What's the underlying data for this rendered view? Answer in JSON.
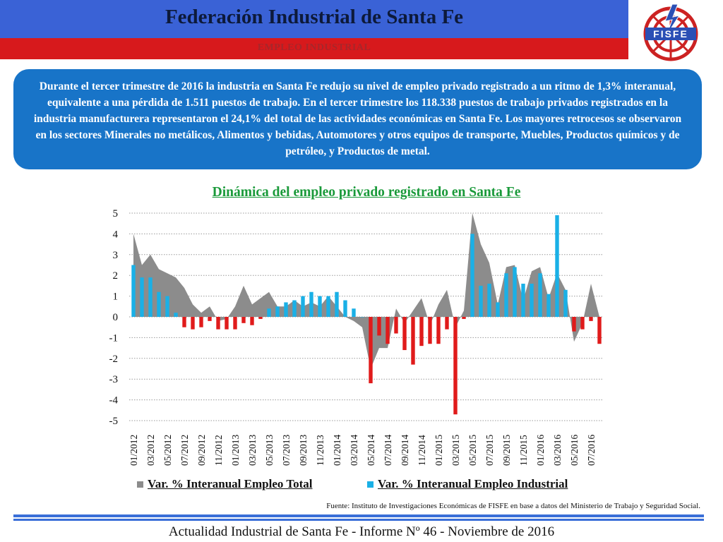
{
  "header": {
    "title": "Federación Industrial de Santa Fe",
    "subtitle": "EMPLEO INDUSTRIAL",
    "logo_text": "FISFE"
  },
  "intro": {
    "text": "Durante el tercer trimestre de 2016 la industria en Santa Fe redujo su nivel de empleo privado registrado a un ritmo de 1,3% interanual, equivalente a una pérdida de 1.511 puestos de trabajo. En el tercer trimestre los 118.338 puestos de trabajo privados registrados en la industria manufacturera representaron el 24,1% del total de las actividades económicas en Santa Fe. Los mayores retrocesos se observaron en los sectores Minerales no metálicos, Alimentos y bebidas, Automotores y otros equipos de transporte, Muebles, Productos químicos y de petróleo, y Productos de metal."
  },
  "source": "Fuente: Instituto de Investigaciones Económicas de FISFE en base a datos del Ministerio de Trabajo y Seguridad Social.",
  "footer": "Actualidad Industrial de Santa Fe - Informe Nº 46 - Noviembre de 2016",
  "colors": {
    "header_blue": "#3a62d6",
    "header_red": "#d7191c",
    "textbox_blue": "#1874c8",
    "area_gray": "#8c8c8c",
    "bar_blue": "#1ab0e6",
    "bar_red": "#e01b1b",
    "title_green": "#1a9a3a"
  },
  "chart_data": {
    "type": "bar",
    "title": "Dinámica del empleo privado registrado en Santa Fe",
    "ylim": [
      -5,
      5
    ],
    "yticks": [
      5,
      4,
      3,
      2,
      1,
      0,
      -1,
      -2,
      -3,
      -4,
      -5
    ],
    "grid": true,
    "legend_position": "bottom",
    "x": [
      "01/2012",
      "02/2012",
      "03/2012",
      "04/2012",
      "05/2012",
      "06/2012",
      "07/2012",
      "08/2012",
      "09/2012",
      "10/2012",
      "11/2012",
      "12/2012",
      "01/2013",
      "02/2013",
      "03/2013",
      "04/2013",
      "05/2013",
      "06/2013",
      "07/2013",
      "08/2013",
      "09/2013",
      "10/2013",
      "11/2013",
      "12/2013",
      "01/2014",
      "02/2014",
      "03/2014",
      "04/2014",
      "05/2014",
      "06/2014",
      "07/2014",
      "08/2014",
      "09/2014",
      "10/2014",
      "11/2014",
      "12/2014",
      "01/2015",
      "02/2015",
      "03/2015",
      "04/2015",
      "05/2015",
      "06/2015",
      "07/2015",
      "08/2015",
      "09/2015",
      "10/2015",
      "11/2015",
      "12/2015",
      "01/2016",
      "02/2016",
      "03/2016",
      "04/2016",
      "05/2016",
      "06/2016",
      "07/2016",
      "08/2016"
    ],
    "xtick_labels": [
      "01/2012",
      "03/2012",
      "05/2012",
      "07/2012",
      "09/2012",
      "11/2012",
      "01/2013",
      "03/2013",
      "05/2013",
      "07/2013",
      "09/2013",
      "11/2013",
      "01/2014",
      "03/2014",
      "05/2014",
      "07/2014",
      "09/2014",
      "11/2014",
      "01/2015",
      "03/2015",
      "05/2015",
      "07/2015",
      "09/2015",
      "11/2015",
      "01/2016",
      "03/2016",
      "05/2016",
      "07/2016"
    ],
    "series": [
      {
        "name": "Var. % Interanual Empleo Total",
        "type": "area",
        "color": "#8c8c8c",
        "values": [
          4.0,
          2.5,
          3.0,
          2.3,
          2.1,
          1.9,
          1.4,
          0.6,
          0.2,
          0.5,
          -0.2,
          -0.1,
          0.5,
          1.5,
          0.6,
          0.9,
          1.2,
          0.5,
          0.5,
          0.8,
          0.5,
          0.7,
          0.5,
          1.0,
          0.5,
          0.0,
          -0.2,
          -0.5,
          -2.5,
          -1.5,
          -1.5,
          0.4,
          -0.3,
          0.3,
          0.9,
          -0.4,
          0.6,
          1.3,
          -0.5,
          0.3,
          5.0,
          3.5,
          2.6,
          0.6,
          2.4,
          2.5,
          0.8,
          2.2,
          2.4,
          0.9,
          2.1,
          1.3,
          -1.2,
          -0.3,
          1.6,
          0.0
        ]
      },
      {
        "name": "Var. % Interanual Empleo Industrial",
        "type": "bar",
        "color": "#1ab0e6",
        "negative_color": "#e01b1b",
        "values": [
          2.5,
          1.9,
          1.9,
          1.2,
          1.0,
          0.2,
          -0.5,
          -0.6,
          -0.5,
          -0.2,
          -0.6,
          -0.6,
          -0.6,
          -0.3,
          -0.4,
          -0.1,
          0.4,
          0.5,
          0.7,
          0.8,
          1.0,
          1.2,
          1.0,
          1.0,
          1.2,
          0.8,
          0.4,
          0.0,
          -3.2,
          -0.9,
          -1.3,
          -0.8,
          -1.6,
          -2.3,
          -1.4,
          -1.3,
          -1.3,
          -0.6,
          -4.7,
          -0.1,
          4.0,
          1.5,
          1.6,
          0.7,
          2.1,
          2.4,
          1.6,
          1.6,
          2.1,
          1.1,
          4.9,
          1.3,
          -0.7,
          -0.6,
          -0.2,
          -1.3
        ]
      }
    ]
  }
}
